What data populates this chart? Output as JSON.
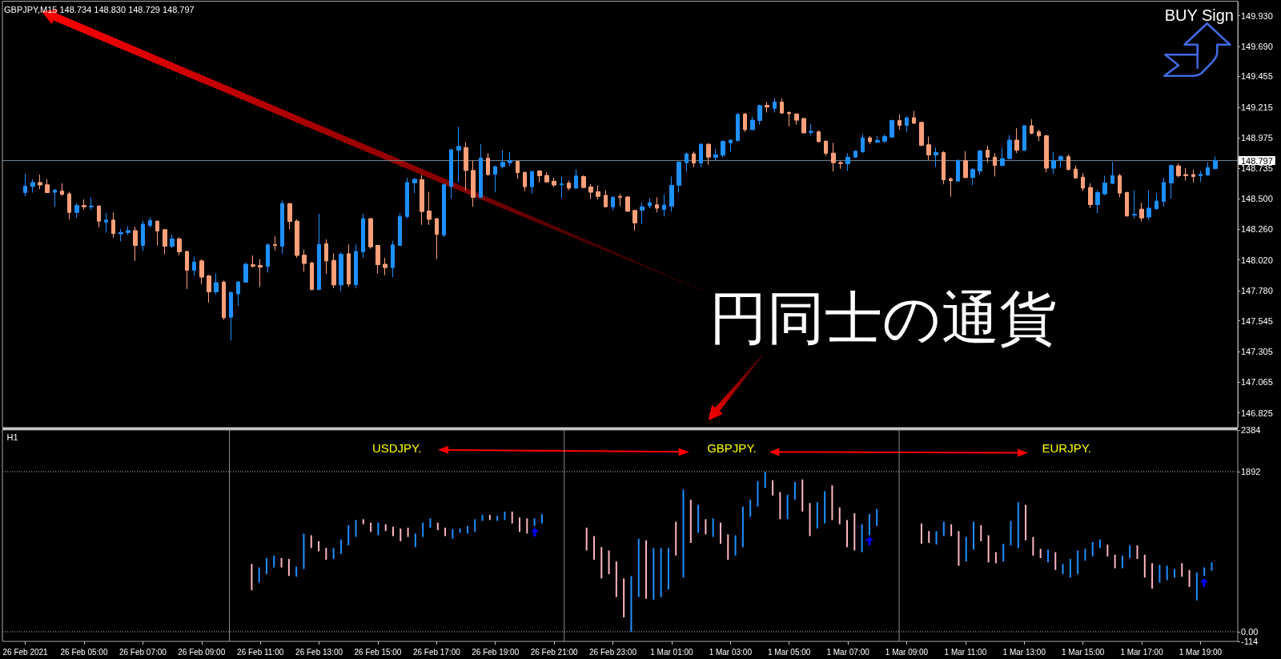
{
  "chart_data": [
    {
      "type": "candlestick",
      "title": "GBPJPY,M15 148.734 148.830 148.729 148.797",
      "categories": [
        "26 Feb 2021",
        null,
        null,
        null,
        null,
        null,
        null,
        null,
        "26 Feb 05:00",
        null,
        null,
        null,
        null,
        null,
        null,
        null,
        "26 Feb 07:00",
        null,
        null,
        null,
        null,
        null,
        null,
        null,
        "26 Feb 09:00",
        null,
        null,
        null,
        null,
        null,
        null,
        null,
        "26 Feb 11:00",
        null,
        null,
        null,
        null,
        null,
        null,
        null,
        "26 Feb 13:00",
        null,
        null,
        null,
        null,
        null,
        null,
        null,
        "26 Feb 15:00",
        null,
        null,
        null,
        null,
        null,
        null,
        null,
        "26 Feb 17:00",
        null,
        null,
        null,
        null,
        null,
        null,
        null,
        "26 Feb 19:00",
        null,
        null,
        null,
        null,
        null,
        null,
        null,
        "26 Feb 21:00",
        null,
        null,
        null,
        null,
        null,
        null,
        null,
        "26 Feb 23:00",
        null,
        null,
        null,
        null,
        null,
        null,
        null,
        "1 Mar 01:00",
        null,
        null,
        null,
        null,
        null,
        null,
        null,
        "1 Mar 03:00",
        null,
        null,
        null,
        null,
        null,
        null,
        null,
        "1 Mar 05:00",
        null,
        null,
        null,
        null,
        null,
        null,
        null,
        "1 Mar 07:00",
        null,
        null,
        null,
        null,
        null,
        null,
        null,
        "1 Mar 09:00",
        null,
        null,
        null,
        null,
        null,
        null,
        null,
        "1 Mar 11:00",
        null,
        null,
        null,
        null,
        null,
        null,
        null,
        "1 Mar 13:00",
        null,
        null,
        null,
        null,
        null,
        null,
        null,
        "1 Mar 15:00",
        null,
        null,
        null,
        null,
        null,
        null,
        null,
        "1 Mar 17:00",
        null,
        null,
        null,
        null,
        null,
        null,
        null,
        "1 Mar 19:00",
        null,
        null
      ],
      "ohlc": [
        [
          148.547,
          148.694,
          148.518,
          148.597
        ],
        [
          148.595,
          148.651,
          148.547,
          148.626
        ],
        [
          148.626,
          148.688,
          148.574,
          148.606
        ],
        [
          148.608,
          148.651,
          148.543,
          148.547
        ],
        [
          148.55,
          148.576,
          148.436,
          148.565
        ],
        [
          148.559,
          148.619,
          148.522,
          148.533
        ],
        [
          148.537,
          148.554,
          148.338,
          148.392
        ],
        [
          148.392,
          148.464,
          148.349,
          148.446
        ],
        [
          148.446,
          148.494,
          148.414,
          148.436
        ],
        [
          148.436,
          148.511,
          148.41,
          148.442
        ],
        [
          148.442,
          148.446,
          148.276,
          148.324
        ],
        [
          148.317,
          148.388,
          148.235,
          148.332
        ],
        [
          148.332,
          148.392,
          148.192,
          148.226
        ],
        [
          148.224,
          148.263,
          148.166,
          148.235
        ],
        [
          148.235,
          148.285,
          148.216,
          148.25
        ],
        [
          148.25,
          148.28,
          148.013,
          148.134
        ],
        [
          148.134,
          148.328,
          148.091,
          148.3
        ],
        [
          148.291,
          148.354,
          148.274,
          148.328
        ],
        [
          148.324,
          148.328,
          148.134,
          148.246
        ],
        [
          148.257,
          148.263,
          148.065,
          148.127
        ],
        [
          148.127,
          148.22,
          148.112,
          148.185
        ],
        [
          148.185,
          148.198,
          148.058,
          148.084
        ],
        [
          148.087,
          148.091,
          147.793,
          147.94
        ],
        [
          147.94,
          148.047,
          147.896,
          148.004
        ],
        [
          148.013,
          148.026,
          147.832,
          147.886
        ],
        [
          147.896,
          147.903,
          147.687,
          147.771
        ],
        [
          147.771,
          147.914,
          147.75,
          147.843
        ],
        [
          147.847,
          147.86,
          147.551,
          147.569
        ],
        [
          147.573,
          147.773,
          147.39,
          147.767
        ],
        [
          147.756,
          147.853,
          147.659,
          147.849
        ],
        [
          147.847,
          148,
          147.843,
          147.987
        ],
        [
          147.983,
          148.056,
          147.961,
          147.972
        ],
        [
          147.978,
          148.026,
          147.81,
          147.965
        ],
        [
          147.97,
          148.151,
          147.922,
          148.138
        ],
        [
          148.14,
          148.205,
          148.095,
          148.134
        ],
        [
          148.127,
          148.487,
          148.069,
          148.461
        ],
        [
          148.461,
          148.466,
          148.259,
          148.321
        ],
        [
          148.324,
          148.338,
          148.037,
          148.056
        ],
        [
          148.058,
          148.101,
          147.929,
          147.993
        ],
        [
          147.998,
          148.004,
          147.784,
          147.789
        ],
        [
          147.789,
          148.382,
          147.784,
          148.142
        ],
        [
          148.147,
          148.181,
          147.912,
          148.013
        ],
        [
          148.017,
          148.073,
          147.799,
          147.825
        ],
        [
          147.825,
          148.08,
          147.773,
          148.065
        ],
        [
          148.069,
          148.142,
          147.81,
          147.832
        ],
        [
          147.827,
          148.142,
          147.799,
          148.087
        ],
        [
          148.084,
          148.382,
          148.037,
          148.343
        ],
        [
          148.343,
          148.349,
          148.108,
          148.123
        ],
        [
          148.134,
          148.138,
          147.914,
          147.983
        ],
        [
          147.987,
          148.037,
          147.901,
          147.961
        ],
        [
          147.961,
          148.17,
          147.886,
          148.138
        ],
        [
          148.134,
          148.386,
          148.129,
          148.36
        ],
        [
          148.36,
          148.662,
          148.345,
          148.626
        ],
        [
          148.623,
          148.662,
          148.543,
          148.651
        ],
        [
          148.649,
          148.684,
          148.295,
          148.399
        ],
        [
          148.403,
          148.554,
          148.295,
          148.338
        ],
        [
          148.343,
          148.349,
          148.026,
          148.22
        ],
        [
          148.216,
          148.619,
          148.198,
          148.608
        ],
        [
          148.595,
          148.888,
          148.5,
          148.882
        ],
        [
          148.878,
          149.061,
          148.63,
          148.908
        ],
        [
          148.899,
          148.942,
          148.565,
          148.72
        ],
        [
          148.72,
          148.796,
          148.436,
          148.509
        ],
        [
          148.511,
          148.927,
          148.504,
          148.817
        ],
        [
          148.817,
          148.856,
          148.677,
          148.688
        ],
        [
          148.69,
          148.755,
          148.55,
          148.75
        ],
        [
          148.75,
          148.882,
          148.735,
          148.783
        ],
        [
          148.781,
          148.863,
          148.753,
          148.798
        ],
        [
          148.791,
          148.796,
          148.655,
          148.703
        ],
        [
          148.705,
          148.71,
          148.559,
          148.593
        ],
        [
          148.593,
          148.716,
          148.539,
          148.712
        ],
        [
          148.716,
          148.722,
          148.626,
          148.679
        ],
        [
          148.681,
          148.705,
          148.626,
          148.63
        ],
        [
          148.636,
          148.662,
          148.591,
          148.606
        ],
        [
          148.608,
          148.673,
          148.504,
          148.615
        ],
        [
          148.621,
          148.64,
          148.565,
          148.582
        ],
        [
          148.582,
          148.727,
          148.578,
          148.677
        ],
        [
          148.673,
          148.681,
          148.582,
          148.587
        ],
        [
          148.591,
          148.612,
          148.496,
          148.55
        ],
        [
          148.554,
          148.602,
          148.492,
          148.517
        ],
        [
          148.526,
          148.565,
          148.431,
          148.436
        ],
        [
          148.436,
          148.517,
          148.408,
          148.511
        ],
        [
          148.517,
          148.537,
          148.44,
          148.511
        ],
        [
          148.513,
          148.517,
          148.397,
          148.401
        ],
        [
          148.408,
          148.412,
          148.25,
          148.31
        ],
        [
          148.41,
          148.468,
          148.302,
          148.436
        ],
        [
          148.444,
          148.504,
          148.425,
          148.468
        ],
        [
          148.451,
          148.511,
          148.392,
          148.425
        ],
        [
          148.414,
          148.533,
          148.36,
          148.449
        ],
        [
          148.44,
          148.673,
          148.397,
          148.604
        ],
        [
          148.604,
          148.791,
          148.547,
          148.785
        ],
        [
          148.781,
          148.86,
          148.712,
          148.85
        ],
        [
          148.85,
          148.867,
          148.744,
          148.778
        ],
        [
          148.778,
          148.932,
          148.746,
          148.925
        ],
        [
          148.925,
          148.932,
          148.763,
          148.824
        ],
        [
          148.822,
          148.888,
          148.802,
          148.843
        ],
        [
          148.839,
          148.953,
          148.824,
          148.947
        ],
        [
          148.936,
          148.964,
          148.867,
          148.957
        ],
        [
          148.953,
          149.169,
          148.949,
          149.158
        ],
        [
          149.162,
          149.169,
          149.022,
          149.039
        ],
        [
          149.039,
          149.141,
          149.037,
          149.113
        ],
        [
          149.111,
          149.234,
          149.078,
          149.227
        ],
        [
          149.229,
          149.255,
          149.173,
          149.216
        ],
        [
          149.205,
          149.287,
          149.173,
          149.255
        ],
        [
          149.255,
          149.283,
          149.164,
          149.169
        ],
        [
          149.173,
          149.182,
          149.065,
          149.164
        ],
        [
          149.162,
          149.164,
          149.078,
          149.113
        ],
        [
          149.126,
          149.13,
          149.011,
          149.014
        ],
        [
          149.018,
          149.083,
          148.996,
          149.026
        ],
        [
          149.022,
          149.033,
          148.94,
          148.945
        ],
        [
          148.949,
          148.953,
          148.835,
          148.854
        ],
        [
          148.856,
          148.936,
          148.712,
          148.781
        ],
        [
          148.781,
          148.794,
          148.733,
          148.774
        ],
        [
          148.772,
          148.856,
          148.716,
          148.824
        ],
        [
          148.824,
          148.876,
          148.82,
          148.871
        ],
        [
          148.867,
          149.003,
          148.856,
          148.975
        ],
        [
          148.975,
          148.99,
          148.927,
          148.945
        ],
        [
          148.942,
          148.99,
          148.936,
          148.955
        ],
        [
          148.949,
          149.003,
          148.936,
          148.985
        ],
        [
          148.981,
          149.115,
          148.975,
          149.111
        ],
        [
          149.111,
          149.158,
          149.039,
          149.072
        ],
        [
          149.072,
          149.143,
          149.022,
          149.132
        ],
        [
          149.132,
          149.186,
          149.083,
          149.089
        ],
        [
          149.096,
          149.1,
          148.91,
          148.916
        ],
        [
          148.921,
          148.985,
          148.802,
          148.841
        ],
        [
          148.841,
          148.899,
          148.746,
          148.86
        ],
        [
          148.86,
          148.871,
          148.612,
          148.647
        ],
        [
          148.655,
          148.666,
          148.515,
          148.64
        ],
        [
          148.636,
          148.807,
          148.632,
          148.798
        ],
        [
          148.796,
          148.871,
          148.66,
          148.664
        ],
        [
          148.666,
          148.738,
          148.604,
          148.727
        ],
        [
          148.716,
          148.88,
          148.684,
          148.873
        ],
        [
          148.878,
          148.914,
          148.781,
          148.824
        ],
        [
          148.824,
          148.856,
          148.673,
          148.759
        ],
        [
          148.759,
          148.893,
          148.753,
          148.813
        ],
        [
          148.813,
          148.996,
          148.807,
          148.957
        ],
        [
          148.957,
          149.05,
          148.856,
          148.878
        ],
        [
          148.878,
          149.072,
          148.873,
          149.07
        ],
        [
          149.07,
          149.121,
          149.003,
          149.011
        ],
        [
          149.022,
          149.039,
          148.949,
          148.99
        ],
        [
          148.992,
          148.996,
          148.705,
          148.738
        ],
        [
          148.738,
          148.863,
          148.694,
          148.796
        ],
        [
          148.802,
          148.839,
          148.742,
          148.828
        ],
        [
          148.828,
          148.845,
          148.722,
          148.727
        ],
        [
          148.731,
          148.759,
          148.655,
          148.662
        ],
        [
          148.668,
          148.699,
          148.559,
          148.582
        ],
        [
          148.587,
          148.619,
          148.425,
          148.453
        ],
        [
          148.453,
          148.565,
          148.386,
          148.547
        ],
        [
          148.537,
          148.679,
          148.526,
          148.623
        ],
        [
          148.619,
          148.787,
          148.612,
          148.679
        ],
        [
          148.679,
          148.694,
          148.509,
          148.543
        ],
        [
          148.547,
          148.554,
          148.36,
          148.364
        ],
        [
          148.371,
          148.565,
          148.345,
          148.377
        ],
        [
          148.418,
          148.468,
          148.321,
          148.349
        ],
        [
          148.356,
          148.565,
          148.334,
          148.425
        ],
        [
          148.421,
          148.543,
          148.414,
          148.481
        ],
        [
          148.479,
          148.662,
          148.436,
          148.626
        ],
        [
          148.623,
          148.766,
          148.5,
          148.759
        ],
        [
          148.755,
          148.774,
          148.666,
          148.679
        ],
        [
          148.688,
          148.738,
          148.64,
          148.679
        ],
        [
          148.688,
          148.727,
          148.626,
          148.673
        ],
        [
          148.679,
          148.716,
          148.63,
          148.69
        ],
        [
          148.684,
          148.785,
          148.679,
          148.742
        ],
        [
          148.734,
          148.83,
          148.729,
          148.797
        ]
      ],
      "colors": [
        "#1e90ff",
        "#1e90ff",
        "#ffa07a",
        "#ffa07a",
        "#1e90ff",
        "#ffa07a",
        "#ffa07a",
        "#1e90ff",
        "#ffa07a",
        "#1e90ff",
        "#ffa07a",
        "#1e90ff",
        "#ffa07a",
        "#1e90ff",
        "#1e90ff",
        "#ffa07a",
        "#1e90ff",
        "#1e90ff",
        "#ffa07a",
        "#ffa07a",
        "#1e90ff",
        "#ffa07a",
        "#ffa07a",
        "#1e90ff",
        "#ffa07a",
        "#ffa07a",
        "#1e90ff",
        "#ffa07a",
        "#1e90ff",
        "#1e90ff",
        "#1e90ff",
        "#ffa07a",
        "#ffa07a",
        "#1e90ff",
        "#ffa07a",
        "#1e90ff",
        "#ffa07a",
        "#ffa07a",
        "#ffa07a",
        "#ffa07a",
        "#1e90ff",
        "#ffa07a",
        "#ffa07a",
        "#1e90ff",
        "#ffa07a",
        "#1e90ff",
        "#1e90ff",
        "#ffa07a",
        "#ffa07a",
        "#ffa07a",
        "#1e90ff",
        "#1e90ff",
        "#1e90ff",
        "#1e90ff",
        "#ffa07a",
        "#ffa07a",
        "#ffa07a",
        "#1e90ff",
        "#1e90ff",
        "#1e90ff",
        "#ffa07a",
        "#ffa07a",
        "#1e90ff",
        "#ffa07a",
        "#1e90ff",
        "#1e90ff",
        "#1e90ff",
        "#ffa07a",
        "#ffa07a",
        "#1e90ff",
        "#ffa07a",
        "#ffa07a",
        "#ffa07a",
        "#1e90ff",
        "#ffa07a",
        "#1e90ff",
        "#ffa07a",
        "#ffa07a",
        "#ffa07a",
        "#ffa07a",
        "#1e90ff",
        "#ffa07a",
        "#ffa07a",
        "#ffa07a",
        "#1e90ff",
        "#1e90ff",
        "#ffa07a",
        "#1e90ff",
        "#1e90ff",
        "#1e90ff",
        "#1e90ff",
        "#ffa07a",
        "#1e90ff",
        "#ffa07a",
        "#1e90ff",
        "#1e90ff",
        "#1e90ff",
        "#1e90ff",
        "#ffa07a",
        "#1e90ff",
        "#1e90ff",
        "#ffa07a",
        "#1e90ff",
        "#ffa07a",
        "#ffa07a",
        "#ffa07a",
        "#ffa07a",
        "#1e90ff",
        "#ffa07a",
        "#ffa07a",
        "#ffa07a",
        "#ffa07a",
        "#1e90ff",
        "#1e90ff",
        "#1e90ff",
        "#ffa07a",
        "#1e90ff",
        "#1e90ff",
        "#1e90ff",
        "#ffa07a",
        "#1e90ff",
        "#ffa07a",
        "#ffa07a",
        "#ffa07a",
        "#1e90ff",
        "#ffa07a",
        "#ffa07a",
        "#1e90ff",
        "#ffa07a",
        "#1e90ff",
        "#1e90ff",
        "#ffa07a",
        "#ffa07a",
        "#1e90ff",
        "#1e90ff",
        "#ffa07a",
        "#1e90ff",
        "#ffa07a",
        "#ffa07a",
        "#ffa07a",
        "#1e90ff",
        "#1e90ff",
        "#ffa07a",
        "#ffa07a",
        "#ffa07a",
        "#ffa07a",
        "#1e90ff",
        "#1e90ff",
        "#1e90ff",
        "#ffa07a",
        "#ffa07a",
        "#1e90ff",
        "#ffa07a",
        "#1e90ff",
        "#1e90ff",
        "#1e90ff",
        "#1e90ff",
        "#ffa07a",
        "#ffa07a",
        "#ffa07a",
        "#1e90ff",
        "#1e90ff",
        "#1e90ff"
      ],
      "ylim": [
        146.71,
        150.04
      ],
      "yticks": [
        {
          "value": 149.93,
          "label": "149.930"
        },
        {
          "value": 149.69,
          "label": "149.690"
        },
        149.455,
        149.215,
        148.975,
        148.735,
        {
          "value": 148.5,
          "label": "148.500"
        },
        {
          "value": 148.26,
          "label": "148.260"
        },
        {
          "value": 148.02,
          "label": "148.020"
        },
        {
          "value": 147.78,
          "label": "147.780"
        },
        147.545,
        147.305,
        147.065,
        146.825
      ],
      "ref_lines": [
        {
          "axis": "y",
          "value": 148.797,
          "label": "148.797",
          "color": "#778899"
        }
      ],
      "annotations": [
        "円同士の通貨",
        "BUY Sign"
      ],
      "tick_labels": "y"
    },
    {
      "type": "bar",
      "categories": [
        null,
        null,
        null,
        null,
        null,
        null,
        null,
        null,
        null,
        null,
        null,
        null,
        null,
        null,
        null,
        null,
        null,
        null,
        null,
        null,
        null,
        null,
        null,
        null,
        null,
        null,
        null,
        null,
        null,
        null,
        null,
        null,
        null,
        null,
        null,
        null,
        null,
        null,
        null,
        null,
        null,
        null,
        null,
        null,
        null,
        null,
        null,
        null,
        null,
        null,
        null,
        null,
        null,
        null,
        null,
        null,
        null,
        null,
        null,
        null,
        null,
        null,
        null,
        null,
        null,
        null,
        null,
        null,
        null,
        null,
        null,
        null,
        null,
        null,
        null,
        null,
        null,
        null,
        null,
        null,
        null,
        null,
        null,
        null,
        null,
        null,
        null,
        null,
        null,
        null,
        null,
        null,
        null,
        null,
        null,
        null,
        null,
        null,
        null,
        null,
        null,
        null,
        null,
        null,
        null,
        null,
        null,
        null,
        null,
        null,
        null,
        null,
        null,
        null,
        null,
        null,
        null,
        null,
        null,
        null,
        null,
        null,
        null,
        null,
        null,
        null,
        null,
        null,
        null,
        null,
        null,
        null,
        null,
        null,
        null,
        null,
        null,
        null,
        null,
        null,
        null,
        null,
        null,
        null,
        null,
        null,
        null,
        null,
        null,
        null,
        null,
        null,
        null,
        null,
        null,
        null,
        null,
        null,
        null,
        null,
        null,
        null,
        null,
        null,
        null,
        null
      ],
      "base": [
        null,
        null,
        null,
        null,
        null,
        null,
        null,
        null,
        null,
        null,
        null,
        null,
        null,
        null,
        null,
        null,
        null,
        null,
        null,
        null,
        null,
        null,
        null,
        null,
        null,
        null,
        null,
        null,
        null,
        null,
        null,
        null,
        null,
        490,
        580,
        680,
        760,
        760,
        660,
        650,
        740,
        990,
        950,
        850,
        860,
        920,
        1020,
        1120,
        1270,
        1180,
        1140,
        1190,
        1130,
        1070,
        1120,
        1000,
        1120,
        1230,
        1200,
        1130,
        1100,
        1170,
        1160,
        1180,
        1310,
        1320,
        1310,
        1320,
        1280,
        1180,
        1160,
        1250,
        1280,
        null,
        null,
        null,
        null,
        null,
        960,
        850,
        630,
        680,
        410,
        170,
        0,
        410,
        390,
        380,
        410,
        500,
        900,
        640,
        1050,
        1170,
        1150,
        1120,
        1040,
        850,
        900,
        1000,
        1360,
        1480,
        1700,
        1610,
        1330,
        1330,
        1560,
        1420,
        1130,
        1220,
        1280,
        1320,
        1270,
        1000,
        960,
        940,
        1140,
        1250,
        null,
        null,
        null,
        null,
        null,
        1040,
        1050,
        1030,
        1130,
        1130,
        780,
        830,
        970,
        1070,
        820,
        810,
        830,
        1020,
        990,
        1080,
        900,
        870,
        820,
        730,
        680,
        640,
        680,
        840,
        890,
        990,
        890,
        750,
        750,
        870,
        860,
        640,
        510,
        580,
        610,
        640,
        650,
        530,
        370,
        660,
        720,
        null,
        null,
        null
      ],
      "values": [
        null,
        null,
        null,
        null,
        null,
        null,
        null,
        null,
        null,
        null,
        null,
        null,
        null,
        null,
        null,
        null,
        null,
        null,
        null,
        null,
        null,
        null,
        null,
        null,
        null,
        null,
        null,
        null,
        null,
        null,
        null,
        null,
        null,
        310,
        180,
        190,
        140,
        110,
        200,
        120,
        420,
        150,
        120,
        140,
        130,
        170,
        240,
        200,
        60,
        110,
        150,
        80,
        110,
        150,
        110,
        160,
        170,
        110,
        90,
        100,
        110,
        50,
        90,
        150,
        70,
        60,
        60,
        100,
        140,
        170,
        180,
        90,
        110,
        null,
        null,
        null,
        null,
        null,
        270,
        280,
        370,
        280,
        420,
        460,
        660,
        690,
        690,
        610,
        580,
        490,
        400,
        1040,
        510,
        330,
        180,
        220,
        250,
        300,
        240,
        480,
        200,
        300,
        190,
        180,
        320,
        290,
        210,
        380,
        390,
        310,
        380,
        410,
        200,
        320,
        440,
        330,
        250,
        200,
        null,
        null,
        null,
        null,
        null,
        240,
        140,
        160,
        170,
        140,
        410,
        290,
        330,
        190,
        320,
        130,
        210,
        290,
        540,
        420,
        220,
        110,
        150,
        210,
        120,
        220,
        280,
        140,
        170,
        100,
        140,
        160,
        150,
        150,
        160,
        270,
        300,
        210,
        170,
        100,
        160,
        200,
        330,
        100,
        100,
        null,
        null,
        null
      ],
      "colors": [
        null,
        null,
        null,
        null,
        null,
        null,
        null,
        null,
        null,
        null,
        null,
        null,
        null,
        null,
        null,
        null,
        null,
        null,
        null,
        null,
        null,
        null,
        null,
        null,
        null,
        null,
        null,
        null,
        null,
        null,
        null,
        null,
        null,
        "#ffb6c1",
        "#1e90ff",
        "#1e90ff",
        "#1e90ff",
        "#ffb6c1",
        "#ffb6c1",
        "#1e90ff",
        "#1e90ff",
        "#ffb6c1",
        "#ffb6c1",
        "#ffb6c1",
        "#1e90ff",
        "#1e90ff",
        "#1e90ff",
        "#1e90ff",
        "#ffb6c1",
        "#ffb6c1",
        "#1e90ff",
        "#ffb6c1",
        "#ffb6c1",
        "#ffb6c1",
        "#ffb6c1",
        "#1e90ff",
        "#1e90ff",
        "#1e90ff",
        "#ffb6c1",
        "#ffb6c1",
        "#1e90ff",
        "#1e90ff",
        "#1e90ff",
        "#1e90ff",
        "#1e90ff",
        "#ffb6c1",
        "#1e90ff",
        "#1e90ff",
        "#ffb6c1",
        "#ffb6c1",
        "#ffb6c1",
        "#1e90ff",
        "#1e90ff",
        null,
        null,
        null,
        null,
        null,
        "#ffb6c1",
        "#ffb6c1",
        "#ffb6c1",
        "#ffb6c1",
        "#ffb6c1",
        "#ffb6c1",
        "#1e90ff",
        "#1e90ff",
        "#ffb6c1",
        "#1e90ff",
        "#1e90ff",
        "#1e90ff",
        "#ffb6c1",
        "#1e90ff",
        "#ffb6c1",
        "#1e90ff",
        "#ffb6c1",
        "#1e90ff",
        "#ffb6c1",
        "#ffb6c1",
        "#1e90ff",
        "#1e90ff",
        "#1e90ff",
        "#1e90ff",
        "#1e90ff",
        "#ffb6c1",
        "#ffb6c1",
        "#1e90ff",
        "#1e90ff",
        "#ffb6c1",
        "#ffb6c1",
        "#1e90ff",
        "#1e90ff",
        "#ffb6c1",
        "#ffb6c1",
        "#ffb6c1",
        "#ffb6c1",
        "#1e90ff",
        "#1e90ff",
        "#1e90ff",
        null,
        null,
        null,
        null,
        null,
        "#ffb6c1",
        "#ffb6c1",
        "#1e90ff",
        "#1e90ff",
        "#ffb6c1",
        "#ffb6c1",
        "#1e90ff",
        "#1e90ff",
        "#ffb6c1",
        "#ffb6c1",
        "#ffb6c1",
        "#1e90ff",
        "#1e90ff",
        "#1e90ff",
        "#ffb6c1",
        "#ffb6c1",
        "#ffb6c1",
        "#1e90ff",
        "#ffb6c1",
        "#1e90ff",
        "#1e90ff",
        "#1e90ff",
        "#1e90ff",
        "#1e90ff",
        "#1e90ff",
        "#ffb6c1",
        "#ffb6c1",
        "#1e90ff",
        "#1e90ff",
        "#ffb6c1",
        "#ffb6c1",
        "#ffb6c1",
        "#1e90ff",
        "#1e90ff",
        "#1e90ff",
        "#ffb6c1",
        "#ffb6c1",
        "#1e90ff",
        "#1e90ff",
        "#1e90ff",
        null,
        null,
        null
      ],
      "ylim": [
        -114,
        2384
      ],
      "yticks": [
        2384,
        1892,
        {
          "value": 0,
          "label": "0.00"
        },
        -114
      ],
      "ref_lines": [
        {
          "axis": "y",
          "value": 1892,
          "color": "#c0c0c0",
          "line_style": "dotted"
        },
        {
          "axis": "y",
          "value": 0,
          "color": "#c0c0c0",
          "line_style": "dotted"
        }
      ],
      "annotations": [
        "H1",
        "USDJPY.",
        "GBPJPY.",
        "EURJPY."
      ],
      "tick_labels": "y"
    }
  ]
}
